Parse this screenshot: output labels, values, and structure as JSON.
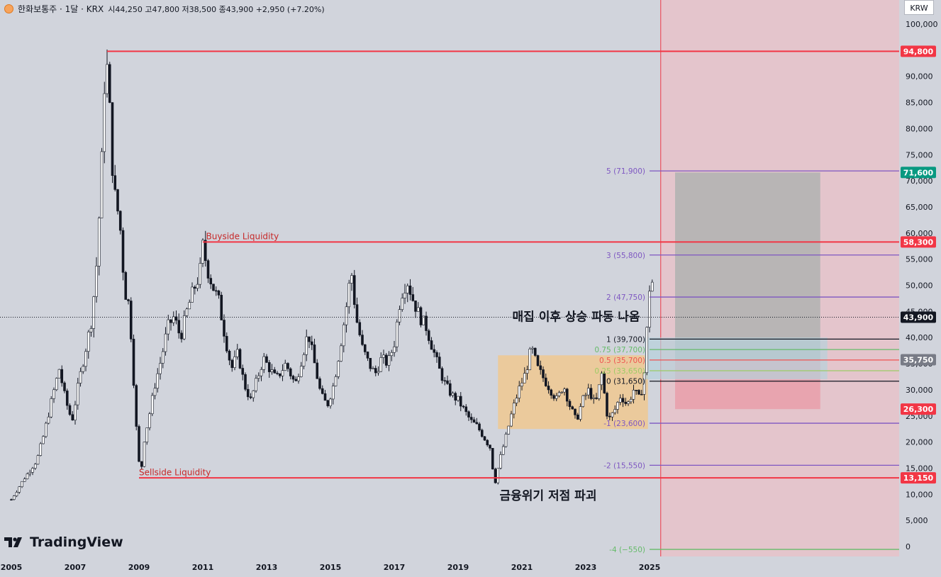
{
  "header": {
    "symbol": "한화보통주 · 1달 · KRX",
    "open_label": "시",
    "open": "44,250",
    "high_label": "고",
    "high": "47,800",
    "low_label": "저",
    "low": "38,500",
    "close_label": "종",
    "close": "43,900",
    "change": "+2,950 (+7.20%)"
  },
  "currency_button": "KRW",
  "brand": "TradingView",
  "colors": {
    "background": "#d1d4dc",
    "up": "#ffffff",
    "down": "#131722",
    "liquidity_line": "#f23645",
    "fib_line": "#9c4dcc",
    "accumulation_box": "#f0c890",
    "target_box": "#b2b2b2",
    "stop_box": "#e8a0ac",
    "entry_box": "#b7d2dc",
    "future_zone": "#e8c0c8"
  },
  "chart_data": {
    "type": "candlestick",
    "interval": "1M",
    "ylim": [
      -1500,
      103000
    ],
    "y_ticks": [
      "100,000",
      "95,000",
      "90,000",
      "85,000",
      "80,000",
      "75,000",
      "70,000",
      "65,000",
      "60,000",
      "55,000",
      "50,000",
      "45,000",
      "40,000",
      "35,000",
      "30,000",
      "25,000",
      "20,000",
      "15,000",
      "10,000",
      "5,000",
      "0"
    ],
    "y_tick_values": [
      100000,
      95000,
      90000,
      85000,
      80000,
      75000,
      70000,
      65000,
      60000,
      55000,
      50000,
      45000,
      40000,
      35000,
      30000,
      25000,
      20000,
      15000,
      10000,
      5000,
      0
    ],
    "x_ticks": [
      "2005",
      "2007",
      "2009",
      "2011",
      "2013",
      "2015",
      "2017",
      "2019",
      "2021",
      "2023",
      "2025"
    ],
    "x_tick_years": [
      2005,
      2007,
      2009,
      2011,
      2013,
      2015,
      2017,
      2019,
      2021,
      2023,
      2025
    ],
    "x_range": [
      2005.0,
      2030.0
    ],
    "current_price": 43900,
    "price_series": [
      [
        2005.0,
        9000
      ],
      [
        2005.4,
        13000
      ],
      [
        2005.8,
        16500
      ],
      [
        2006.0,
        21000
      ],
      [
        2006.3,
        29000
      ],
      [
        2006.5,
        34000
      ],
      [
        2006.7,
        28000
      ],
      [
        2006.9,
        24000
      ],
      [
        2007.1,
        31000
      ],
      [
        2007.3,
        37000
      ],
      [
        2007.5,
        43000
      ],
      [
        2007.65,
        52000
      ],
      [
        2007.75,
        63000
      ],
      [
        2007.85,
        76000
      ],
      [
        2007.95,
        94800
      ],
      [
        2008.05,
        88000
      ],
      [
        2008.15,
        74000
      ],
      [
        2008.25,
        67000
      ],
      [
        2008.4,
        62000
      ],
      [
        2008.55,
        49000
      ],
      [
        2008.7,
        46000
      ],
      [
        2008.85,
        30000
      ],
      [
        2008.95,
        19000
      ],
      [
        2009.05,
        13150
      ],
      [
        2009.15,
        20000
      ],
      [
        2009.35,
        26000
      ],
      [
        2009.5,
        31000
      ],
      [
        2009.7,
        36000
      ],
      [
        2009.9,
        42000
      ],
      [
        2010.1,
        44000
      ],
      [
        2010.3,
        40000
      ],
      [
        2010.5,
        45000
      ],
      [
        2010.7,
        49000
      ],
      [
        2010.9,
        52000
      ],
      [
        2011.0,
        57500
      ],
      [
        2011.15,
        53000
      ],
      [
        2011.3,
        50000
      ],
      [
        2011.5,
        47000
      ],
      [
        2011.7,
        40000
      ],
      [
        2011.9,
        34000
      ],
      [
        2012.1,
        37000
      ],
      [
        2012.3,
        31000
      ],
      [
        2012.5,
        28000
      ],
      [
        2012.7,
        32000
      ],
      [
        2012.9,
        36000
      ],
      [
        2013.1,
        34000
      ],
      [
        2013.3,
        32000
      ],
      [
        2013.6,
        35000
      ],
      [
        2013.9,
        31000
      ],
      [
        2014.1,
        36000
      ],
      [
        2014.3,
        41000
      ],
      [
        2014.5,
        35000
      ],
      [
        2014.7,
        29000
      ],
      [
        2014.9,
        27000
      ],
      [
        2015.1,
        31000
      ],
      [
        2015.3,
        38000
      ],
      [
        2015.5,
        46000
      ],
      [
        2015.65,
        53000
      ],
      [
        2015.8,
        44000
      ],
      [
        2016.0,
        38000
      ],
      [
        2016.2,
        35000
      ],
      [
        2016.4,
        33000
      ],
      [
        2016.6,
        36000
      ],
      [
        2016.8,
        35000
      ],
      [
        2017.0,
        39000
      ],
      [
        2017.2,
        48000
      ],
      [
        2017.4,
        51000
      ],
      [
        2017.6,
        47000
      ],
      [
        2017.8,
        44000
      ],
      [
        2018.0,
        42000
      ],
      [
        2018.2,
        38000
      ],
      [
        2018.4,
        34000
      ],
      [
        2018.6,
        31000
      ],
      [
        2018.8,
        29000
      ],
      [
        2019.0,
        28000
      ],
      [
        2019.2,
        26000
      ],
      [
        2019.4,
        24000
      ],
      [
        2019.6,
        23000
      ],
      [
        2019.8,
        21000
      ],
      [
        2020.0,
        19000
      ],
      [
        2020.15,
        12000
      ],
      [
        2020.3,
        16500
      ],
      [
        2020.5,
        21000
      ],
      [
        2020.7,
        26000
      ],
      [
        2020.9,
        30000
      ],
      [
        2021.1,
        33000
      ],
      [
        2021.3,
        38000
      ],
      [
        2021.5,
        34000
      ],
      [
        2021.7,
        32000
      ],
      [
        2021.9,
        30000
      ],
      [
        2022.1,
        28000
      ],
      [
        2022.3,
        31000
      ],
      [
        2022.5,
        27000
      ],
      [
        2022.7,
        24000
      ],
      [
        2022.9,
        28000
      ],
      [
        2023.1,
        30000
      ],
      [
        2023.3,
        27000
      ],
      [
        2023.5,
        33000
      ],
      [
        2023.7,
        24000
      ],
      [
        2023.9,
        26000
      ],
      [
        2024.1,
        29000
      ],
      [
        2024.3,
        27000
      ],
      [
        2024.5,
        30000
      ],
      [
        2024.7,
        28000
      ],
      [
        2024.85,
        34000
      ],
      [
        2024.95,
        45000
      ],
      [
        2025.05,
        54000
      ],
      [
        2025.15,
        43900
      ]
    ],
    "horizontal_levels": [
      {
        "price": 94800,
        "label": "94,800",
        "kind": "liquidity",
        "x_start": 2008.0
      },
      {
        "price": 58300,
        "label": "58,300",
        "kind": "liquidity",
        "x_start": 2011.0
      },
      {
        "price": 13150,
        "label": "13,150",
        "kind": "liquidity",
        "x_start": 2009.0
      }
    ],
    "annotations": [
      {
        "text": "Buyside Liquidity",
        "x": 2011.1,
        "y": 59500,
        "color": "#c62828",
        "size": 12
      },
      {
        "text": "Sellside Liquidity",
        "x": 2009.0,
        "y": 14300,
        "color": "#c62828",
        "size": 12
      },
      {
        "text": "매집 이후 상승 파동 나옴",
        "x": 2020.7,
        "y": 43900,
        "color": "#131722",
        "size": 17,
        "bold": true
      },
      {
        "text": "금융위기 저점 파괴",
        "x": 2020.3,
        "y": 9600,
        "color": "#131722",
        "size": 17,
        "bold": true
      }
    ],
    "fib_levels": [
      {
        "label": "5 (71,900)",
        "price": 71900,
        "color": "#7e57c2"
      },
      {
        "label": "3 (55,800)",
        "price": 55800,
        "color": "#7e57c2"
      },
      {
        "label": "2 (47,750)",
        "price": 47750,
        "color": "#7e57c2"
      },
      {
        "label": "1 (39,700)",
        "price": 39700,
        "color": "#131722"
      },
      {
        "label": "0.75 (37,700)",
        "price": 37700,
        "color": "#66bb6a"
      },
      {
        "label": "0.5 (35,700)",
        "price": 35700,
        "color": "#ef5350"
      },
      {
        "label": "0.25 (33,650)",
        "price": 33650,
        "color": "#9ccc65"
      },
      {
        "label": "0 (31,650)",
        "price": 31650,
        "color": "#131722"
      },
      {
        "label": "-1 (23,600)",
        "price": 23600,
        "color": "#7e57c2"
      },
      {
        "label": "-2 (15,550)",
        "price": 15550,
        "color": "#7e57c2"
      },
      {
        "label": "-4 (−550)",
        "price": -550,
        "color": "#66bb6a"
      }
    ],
    "accumulation_box": {
      "x0": 2020.25,
      "x1": 2024.95,
      "y_top": 36600,
      "y_bottom": 22500
    },
    "position_tool": {
      "x0": 2025.8,
      "x1": 2030.35,
      "target": 71600,
      "entry": 35750,
      "stop": 26300
    },
    "future_zone": {
      "x0": 2025.35,
      "x1": 2032.0
    },
    "price_badges": [
      {
        "label": "94,800",
        "price": 94800,
        "bg": "#f23645"
      },
      {
        "label": "71,600",
        "price": 71600,
        "bg": "#089981"
      },
      {
        "label": "58,300",
        "price": 58300,
        "bg": "#f23645"
      },
      {
        "label": "43,900",
        "price": 43900,
        "bg": "#131722"
      },
      {
        "label": "35,750",
        "price": 35750,
        "bg": "#787b86"
      },
      {
        "label": "26,300",
        "price": 26300,
        "bg": "#f23645"
      },
      {
        "label": "13,150",
        "price": 13150,
        "bg": "#f23645"
      }
    ]
  }
}
